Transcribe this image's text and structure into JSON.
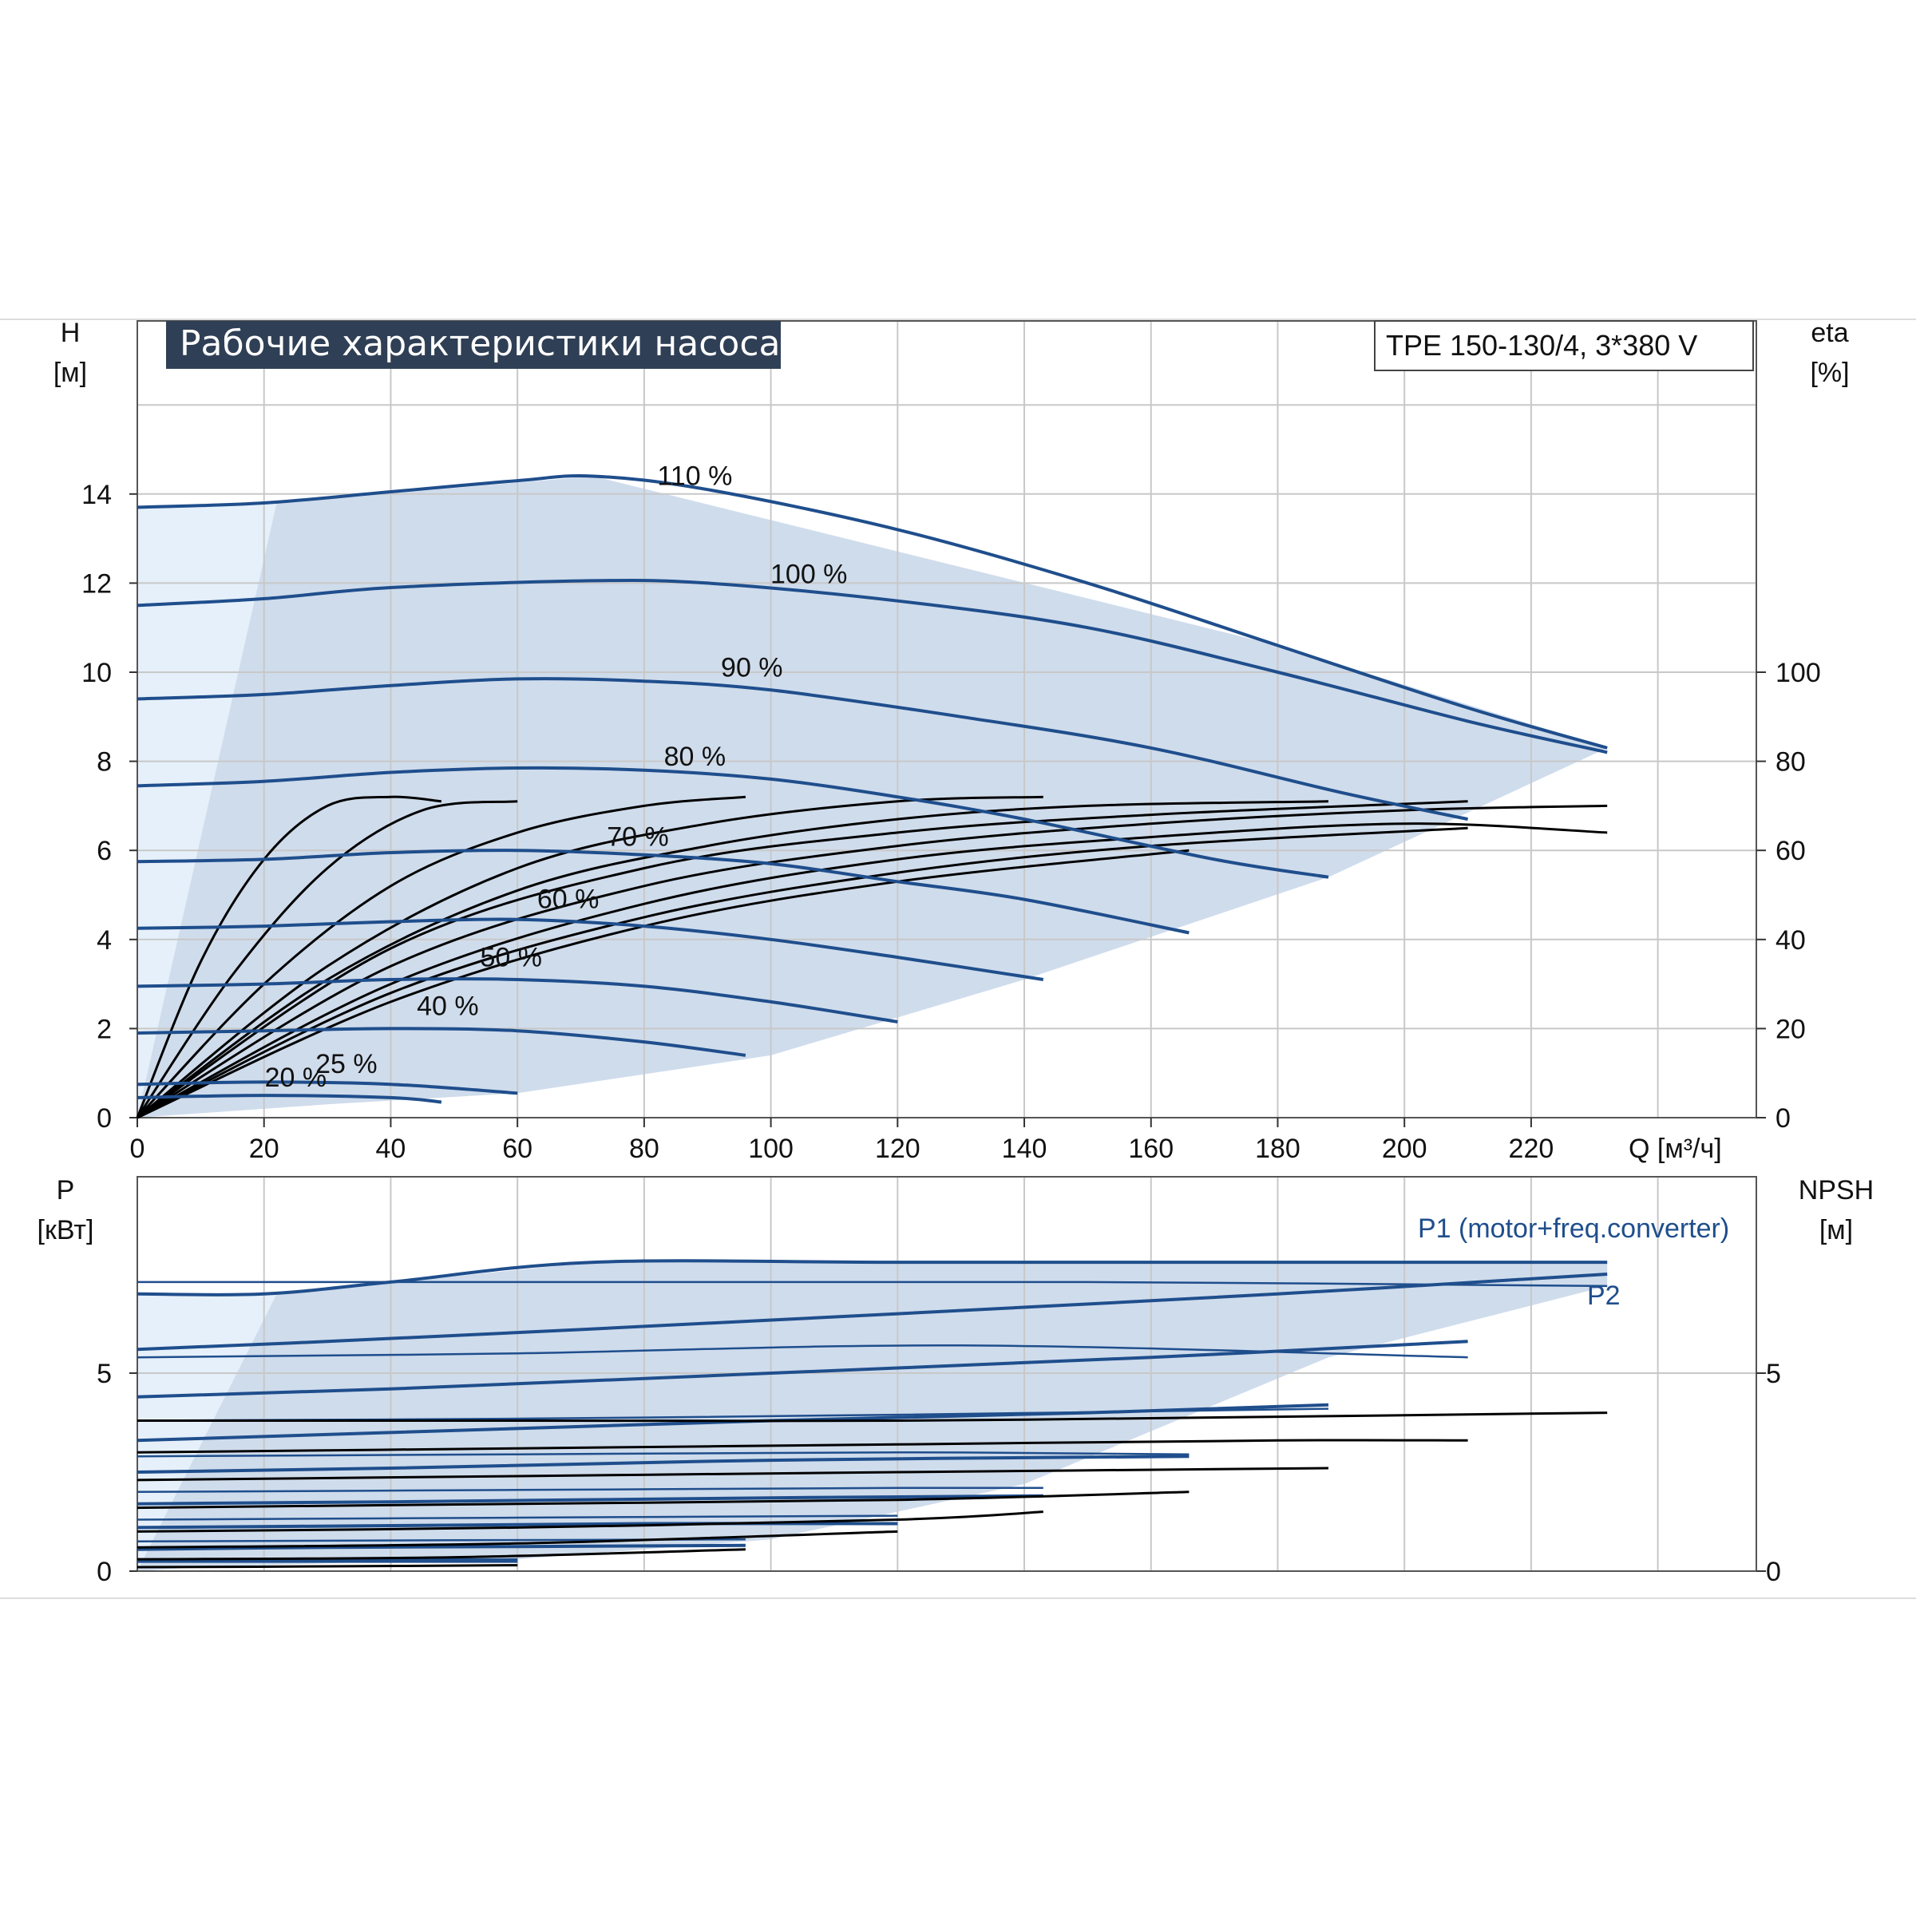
{
  "title": "Рабочие характеристики насоса",
  "model": "TPE 150-130/4, 3*380 V",
  "colors": {
    "curve": "#1f4e8c",
    "fill": "#cfdcec",
    "fill_light": "#e6f0fa",
    "black": "#000000",
    "grid": "#c8c8c8",
    "title_bg": "#2f3f55",
    "title_fg": "#ffffff",
    "p1_label": "#1f4e8c"
  },
  "chart_data": [
    {
      "type": "line",
      "name": "head",
      "ylabel": "H",
      "yunit": "[м]",
      "y2label": "eta",
      "y2unit": "[%]",
      "xlabel": "Q [м³/ч]",
      "xlim": [
        0,
        240
      ],
      "ylim": [
        0,
        16
      ],
      "y2lim": [
        0,
        160
      ],
      "xticks": [
        "0",
        "20",
        "40",
        "60",
        "80",
        "100",
        "120",
        "140",
        "160",
        "180",
        "200",
        "220"
      ],
      "yticks": [
        "0",
        "2",
        "4",
        "6",
        "8",
        "10",
        "12",
        "14"
      ],
      "y2ticks": [
        "0",
        "20",
        "40",
        "60",
        "80",
        "100"
      ],
      "grid": true,
      "series": [
        {
          "name": "110 %",
          "x": [
            0,
            20,
            40,
            60,
            72,
            90,
            120,
            150,
            180,
            210,
            232
          ],
          "y": [
            13.7,
            13.8,
            14.05,
            14.3,
            14.4,
            14.1,
            13.2,
            12.0,
            10.6,
            9.2,
            8.3
          ],
          "label_x": 88,
          "label_y": 14.2
        },
        {
          "name": "100 %",
          "x": [
            0,
            20,
            40,
            70,
            90,
            120,
            150,
            180,
            210,
            232
          ],
          "y": [
            11.5,
            11.65,
            11.9,
            12.05,
            12.0,
            11.6,
            11.0,
            10.0,
            8.9,
            8.2
          ],
          "label_x": 106,
          "label_y": 12.0
        },
        {
          "name": "90 %",
          "x": [
            0,
            20,
            40,
            60,
            80,
            100,
            130,
            160,
            190,
            210
          ],
          "y": [
            9.4,
            9.5,
            9.7,
            9.85,
            9.8,
            9.6,
            9.0,
            8.3,
            7.3,
            6.7
          ],
          "label_x": 97,
          "label_y": 9.9
        },
        {
          "name": "80 %",
          "x": [
            0,
            20,
            40,
            60,
            80,
            100,
            120,
            140,
            170,
            188
          ],
          "y": [
            7.45,
            7.55,
            7.75,
            7.85,
            7.8,
            7.6,
            7.2,
            6.7,
            5.8,
            5.4
          ],
          "label_x": 88,
          "label_y": 7.9
        },
        {
          "name": "70 %",
          "x": [
            0,
            20,
            40,
            60,
            80,
            100,
            120,
            140,
            166
          ],
          "y": [
            5.75,
            5.8,
            5.95,
            6.0,
            5.9,
            5.7,
            5.3,
            4.9,
            4.15
          ],
          "label_x": 79,
          "label_y": 6.1
        },
        {
          "name": "60 %",
          "x": [
            0,
            20,
            40,
            60,
            80,
            100,
            120,
            143
          ],
          "y": [
            4.25,
            4.3,
            4.4,
            4.45,
            4.3,
            4.0,
            3.6,
            3.1
          ],
          "label_x": 68,
          "label_y": 4.7
        },
        {
          "name": "50 %",
          "x": [
            0,
            20,
            40,
            60,
            80,
            100,
            120
          ],
          "y": [
            2.95,
            3.0,
            3.1,
            3.1,
            2.95,
            2.6,
            2.15
          ],
          "label_x": 59,
          "label_y": 3.4
        },
        {
          "name": "40 %",
          "x": [
            0,
            20,
            40,
            60,
            80,
            96
          ],
          "y": [
            1.9,
            1.95,
            2.0,
            1.95,
            1.7,
            1.4
          ],
          "label_x": 49,
          "label_y": 2.3
        },
        {
          "name": "25 %",
          "x": [
            0,
            20,
            40,
            60
          ],
          "y": [
            0.75,
            0.8,
            0.75,
            0.55
          ],
          "label_x": 33,
          "label_y": 1.0
        },
        {
          "name": "20 %",
          "x": [
            0,
            20,
            40,
            48
          ],
          "y": [
            0.45,
            0.5,
            0.45,
            0.35
          ],
          "label_x": 25,
          "label_y": 0.7
        }
      ],
      "envelope": {
        "x": [
          0,
          0,
          22,
          72,
          180,
          232,
          188,
          140,
          100,
          60,
          30,
          10
        ],
        "y": [
          0,
          13.7,
          13.8,
          14.4,
          10.6,
          8.3,
          5.4,
          3.1,
          1.4,
          0.55,
          0.3,
          0.1
        ]
      },
      "efficiency": [
        {
          "x": [
            0,
            10,
            20,
            30,
            40,
            48
          ],
          "y": [
            0,
            35,
            58,
            70,
            72,
            71
          ]
        },
        {
          "x": [
            0,
            15,
            30,
            45,
            60
          ],
          "y": [
            0,
            32,
            56,
            69,
            71
          ]
        },
        {
          "x": [
            0,
            20,
            40,
            60,
            80,
            96
          ],
          "y": [
            0,
            30,
            52,
            64,
            70,
            72
          ]
        },
        {
          "x": [
            0,
            30,
            60,
            90,
            120,
            143
          ],
          "y": [
            0,
            34,
            56,
            66,
            71,
            72
          ]
        },
        {
          "x": [
            0,
            30,
            60,
            90,
            120,
            150,
            188
          ],
          "y": [
            0,
            31,
            51,
            61,
            67,
            70,
            71
          ]
        },
        {
          "x": [
            0,
            40,
            80,
            120,
            160,
            210
          ],
          "y": [
            0,
            38,
            56,
            64,
            68,
            71
          ]
        },
        {
          "x": [
            0,
            40,
            80,
            120,
            160,
            200,
            232
          ],
          "y": [
            0,
            34,
            52,
            61,
            66,
            69,
            70
          ]
        },
        {
          "x": [
            0,
            40,
            80,
            120,
            160,
            200,
            232
          ],
          "y": [
            0,
            30,
            48,
            58,
            63,
            66,
            64
          ]
        },
        {
          "x": [
            0,
            40,
            80,
            120,
            160,
            210
          ],
          "y": [
            0,
            28,
            45,
            55,
            61,
            65
          ]
        },
        {
          "x": [
            0,
            40,
            80,
            120,
            166
          ],
          "y": [
            0,
            26,
            43,
            53,
            60
          ]
        }
      ]
    },
    {
      "type": "line",
      "name": "power",
      "ylabel": "P",
      "yunit": "[кВт]",
      "y2label": "NPSH",
      "y2unit": "[м]",
      "xlim": [
        0,
        240
      ],
      "ylim": [
        0,
        8
      ],
      "y2lim": [
        0,
        8
      ],
      "yticks": [
        "0",
        "5"
      ],
      "y2ticks": [
        "0",
        "5"
      ],
      "grid": true,
      "p1_label": "P1 (motor+freq.converter)",
      "p2_label": "P2",
      "p1_series": [
        {
          "x": [
            0,
            20,
            40,
            72,
            120,
            180,
            232
          ],
          "y": [
            7.0,
            7.0,
            7.3,
            7.8,
            7.8,
            7.8,
            7.8
          ]
        },
        {
          "x": [
            0,
            30,
            70,
            120,
            180,
            232
          ],
          "y": [
            5.6,
            5.8,
            6.1,
            6.5,
            7.0,
            7.5
          ]
        },
        {
          "x": [
            0,
            40,
            100,
            160,
            210
          ],
          "y": [
            4.4,
            4.6,
            5.0,
            5.4,
            5.8
          ]
        },
        {
          "x": [
            0,
            40,
            100,
            150,
            188
          ],
          "y": [
            3.3,
            3.5,
            3.8,
            4.0,
            4.2
          ]
        },
        {
          "x": [
            0,
            40,
            100,
            166
          ],
          "y": [
            2.5,
            2.6,
            2.8,
            2.9
          ]
        },
        {
          "x": [
            0,
            40,
            100,
            143
          ],
          "y": [
            1.7,
            1.75,
            1.85,
            1.9
          ]
        },
        {
          "x": [
            0,
            40,
            80,
            120
          ],
          "y": [
            1.1,
            1.15,
            1.2,
            1.2
          ]
        },
        {
          "x": [
            0,
            30,
            60,
            96
          ],
          "y": [
            0.55,
            0.6,
            0.62,
            0.65
          ]
        },
        {
          "x": [
            0,
            30,
            60
          ],
          "y": [
            0.25,
            0.25,
            0.25
          ]
        }
      ],
      "p2_series": [
        {
          "x": [
            0,
            72,
            150,
            232
          ],
          "y": [
            7.3,
            7.3,
            7.3,
            7.2
          ]
        },
        {
          "x": [
            0,
            60,
            130,
            210
          ],
          "y": [
            5.4,
            5.5,
            5.7,
            5.4
          ]
        },
        {
          "x": [
            0,
            60,
            120,
            188
          ],
          "y": [
            3.8,
            3.85,
            3.95,
            4.1
          ]
        },
        {
          "x": [
            0,
            60,
            120,
            166
          ],
          "y": [
            2.9,
            2.95,
            3.0,
            2.95
          ]
        },
        {
          "x": [
            0,
            60,
            120,
            143
          ],
          "y": [
            2.0,
            2.05,
            2.1,
            2.1
          ]
        },
        {
          "x": [
            0,
            60,
            120
          ],
          "y": [
            1.3,
            1.35,
            1.4
          ]
        },
        {
          "x": [
            0,
            50,
            96
          ],
          "y": [
            0.75,
            0.78,
            0.8
          ]
        },
        {
          "x": [
            0,
            30,
            60
          ],
          "y": [
            0.3,
            0.3,
            0.3
          ]
        }
      ],
      "npsh_series": [
        {
          "x": [
            0,
            60,
            120,
            180,
            232
          ],
          "y": [
            3.8,
            3.8,
            3.8,
            3.9,
            4.0
          ]
        },
        {
          "x": [
            0,
            60,
            120,
            180,
            210
          ],
          "y": [
            3.0,
            3.1,
            3.2,
            3.3,
            3.3
          ]
        },
        {
          "x": [
            0,
            60,
            120,
            188
          ],
          "y": [
            2.3,
            2.4,
            2.5,
            2.6
          ]
        },
        {
          "x": [
            0,
            60,
            120,
            166
          ],
          "y": [
            1.6,
            1.7,
            1.8,
            2.0
          ]
        },
        {
          "x": [
            0,
            60,
            120,
            143
          ],
          "y": [
            1.0,
            1.1,
            1.3,
            1.5
          ]
        },
        {
          "x": [
            0,
            60,
            120
          ],
          "y": [
            0.6,
            0.7,
            1.0
          ]
        },
        {
          "x": [
            0,
            50,
            96
          ],
          "y": [
            0.3,
            0.35,
            0.55
          ]
        },
        {
          "x": [
            0,
            30,
            60
          ],
          "y": [
            0.1,
            0.12,
            0.15
          ]
        }
      ],
      "envelope": {
        "x": [
          0,
          0,
          22,
          72,
          232,
          232,
          188,
          140,
          100,
          60,
          30,
          10
        ],
        "y": [
          0,
          7.0,
          7.0,
          7.8,
          7.8,
          7.2,
          5.4,
          2.2,
          0.8,
          0.3,
          0.2,
          0.1
        ]
      }
    }
  ]
}
